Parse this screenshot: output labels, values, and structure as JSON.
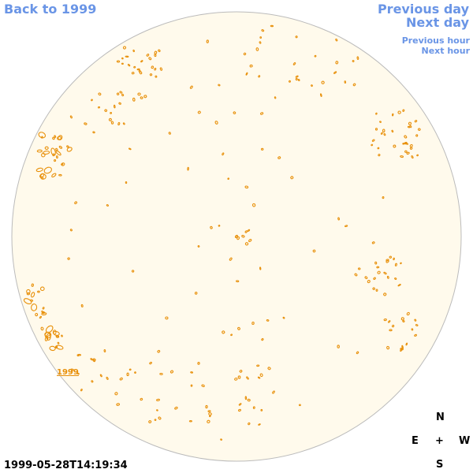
{
  "nav": {
    "back": "Back to 1999",
    "previous_day": "Previous day",
    "next_day": "Next day",
    "previous_hour": "Previous hour",
    "next_hour": "Next hour"
  },
  "disk": {
    "fill_color": "#fffaec",
    "stroke_color": "#bbbbbb",
    "contour_color": "#e8900a",
    "year_label": "1999"
  },
  "compass": {
    "north": "N",
    "east": "E",
    "west": "W",
    "south": "S",
    "center": "+"
  },
  "timestamp": "1999-05-28T14:19:34"
}
